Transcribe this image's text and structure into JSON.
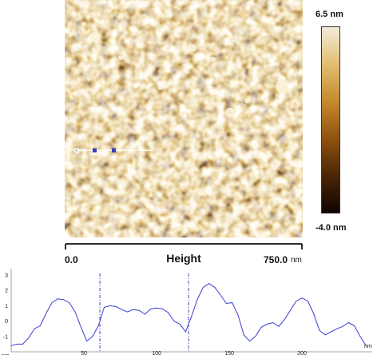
{
  "image_panel": {
    "title": "Height",
    "scale_start": "0.0",
    "scale_end": "750.0",
    "scale_unit": "nm"
  },
  "colorbar": {
    "max_label": "6.5 nm",
    "min_label": "-4.0 nm",
    "colors": [
      "#f3ecd8",
      "#e2bd72",
      "#c58a2c",
      "#8f5210",
      "#4a2505",
      "#120400"
    ]
  },
  "chart_data": {
    "type": "line",
    "title": "",
    "xlabel": "nm",
    "ylabel": "nm",
    "xlim": [
      0,
      245
    ],
    "ylim": [
      -2,
      3
    ],
    "x_ticks": [
      50,
      100,
      150,
      200
    ],
    "y_ticks": [
      -1,
      0,
      1,
      2,
      3
    ],
    "y_tick_labels": [
      "-1",
      "0",
      "1",
      "2",
      "3"
    ],
    "grid": false,
    "line_color": "#3a3fd1",
    "markers_x": [
      61,
      122
    ],
    "series": [
      {
        "name": "",
        "x": [
          0,
          4,
          8,
          12,
          16,
          20,
          24,
          28,
          32,
          36,
          40,
          44,
          48,
          52,
          56,
          60,
          64,
          68,
          72,
          76,
          80,
          84,
          88,
          92,
          96,
          100,
          104,
          108,
          112,
          116,
          120,
          124,
          128,
          132,
          136,
          140,
          144,
          148,
          152,
          156,
          160,
          164,
          168,
          172,
          176,
          180,
          184,
          188,
          192,
          196,
          200,
          204,
          208,
          212,
          216,
          220,
          224,
          228,
          232,
          236,
          240,
          244
        ],
        "y": [
          -1.6,
          -1.5,
          -1.5,
          -1.1,
          -0.5,
          -0.3,
          0.5,
          1.2,
          1.45,
          1.4,
          1.2,
          0.6,
          -0.4,
          -1.3,
          -1.0,
          -0.3,
          0.9,
          1.0,
          0.95,
          0.75,
          0.6,
          0.75,
          0.7,
          0.45,
          0.8,
          0.85,
          0.8,
          0.55,
          0.0,
          -0.2,
          -0.7,
          0.3,
          1.4,
          2.2,
          2.45,
          2.2,
          1.7,
          1.15,
          1.2,
          0.4,
          -0.9,
          -1.3,
          -1.0,
          -0.4,
          -0.2,
          -0.1,
          -0.35,
          0.1,
          0.7,
          1.3,
          1.5,
          1.3,
          0.5,
          -0.6,
          -0.9,
          -0.7,
          -0.5,
          -0.35,
          -0.1,
          -0.3,
          -1.0,
          -1.6
        ]
      }
    ]
  }
}
